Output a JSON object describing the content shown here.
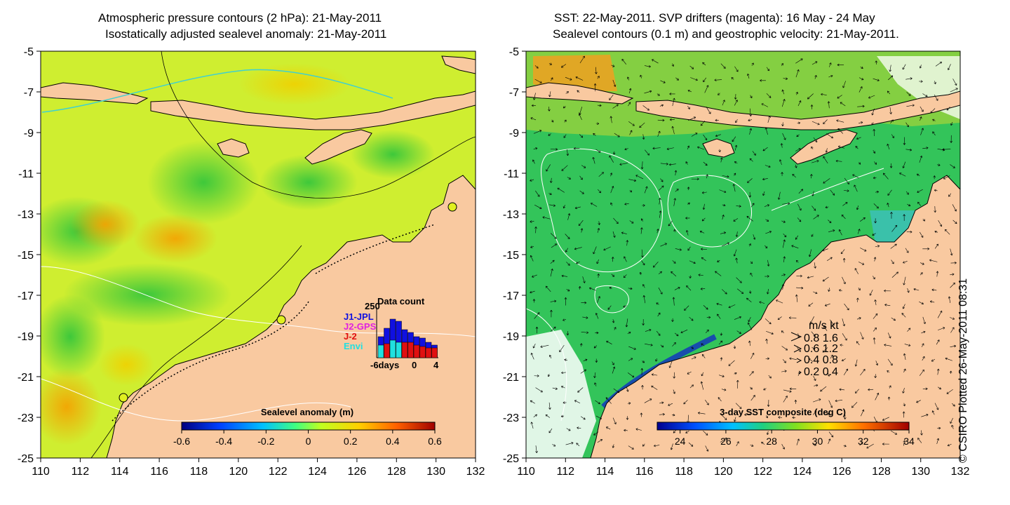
{
  "left_panel": {
    "title_line1": "Atmospheric pressure contours (2 hPa): 21-May-2011",
    "title_line2": "Isostatically adjusted sealevel anomaly: 21-May-2011",
    "colorbar_label": "Sealevel anomaly (m)",
    "colorbar_ticks": [
      "-0.6",
      "-0.4",
      "-0.2",
      "0",
      "0.2",
      "0.4",
      "0.6"
    ],
    "histogram": {
      "title": "Data count",
      "max_label": "250",
      "legend": [
        {
          "label": "J1-JPL",
          "color": "#1010e0"
        },
        {
          "label": "J2-GPS",
          "color": "#e020e0"
        },
        {
          "label": "J-2",
          "color": "#e01010"
        },
        {
          "label": "Envi",
          "color": "#20e0e0"
        }
      ],
      "x_labels": [
        "-6days",
        "0",
        "4"
      ]
    }
  },
  "right_panel": {
    "title_line1": "SST: 22-May-2011. SVP drifters (magenta): 16 May - 24 May",
    "title_line2": "Sealevel contours (0.1 m) and geostrophic velocity: 21-May-2011.",
    "colorbar_label": "3-day SST composite (deg C)",
    "colorbar_ticks": [
      "24",
      "26",
      "28",
      "30",
      "32",
      "34"
    ],
    "velocity_legend": {
      "header": "m/s  kt",
      "rows": [
        "0.8  1.6",
        "0.6  1.2",
        "0.4  0.8",
        "0.2  0.4"
      ]
    }
  },
  "x_ticks": [
    "110",
    "112",
    "114",
    "116",
    "118",
    "120",
    "122",
    "124",
    "126",
    "128",
    "130",
    "132"
  ],
  "y_ticks": [
    "-5",
    "-7",
    "-9",
    "-11",
    "-13",
    "-15",
    "-17",
    "-19",
    "-21",
    "-23",
    "-25"
  ],
  "credit": "© CSIRO Plotted 26-May-2011 08:31",
  "colors": {
    "land": "#f9c9a0",
    "sea_left": "#cfee30",
    "sea_right": "#33c45a"
  }
}
